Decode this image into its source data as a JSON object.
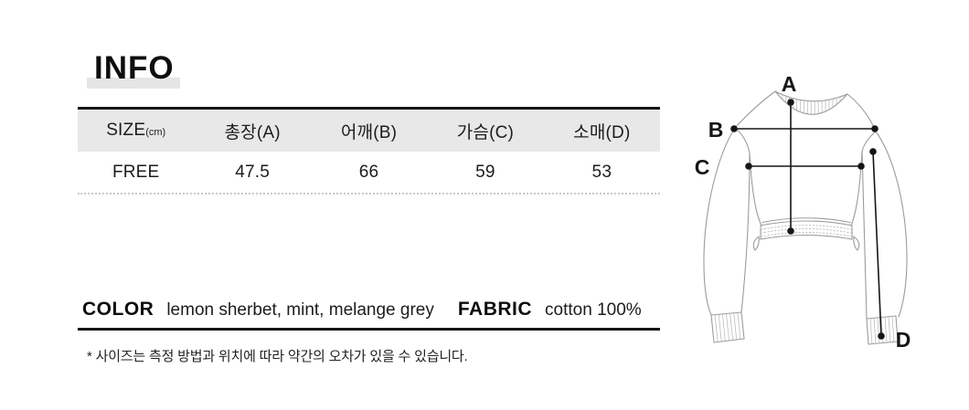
{
  "title": "INFO",
  "table": {
    "size_label": "SIZE",
    "size_unit": "(cm)",
    "headers": [
      "총장(A)",
      "어깨(B)",
      "가슴(C)",
      "소매(D)"
    ],
    "row": [
      "FREE",
      "47.5",
      "66",
      "59",
      "53"
    ]
  },
  "details": {
    "color_label": "COLOR",
    "color_value": "lemon sherbet, mint, melange grey",
    "fabric_label": "FABRIC",
    "fabric_value": "cotton 100%"
  },
  "note": "* 사이즈는 측정 방법과 위치에 따라 약간의 오차가 있을 수 있습니다.",
  "diagram": {
    "labels": [
      "A",
      "B",
      "C",
      "D"
    ]
  },
  "colors": {
    "header_bg": "#e8e8e8",
    "title_highlight": "#e5e5e5",
    "rule": "#161616",
    "sketch_line": "#9c9c9c"
  }
}
